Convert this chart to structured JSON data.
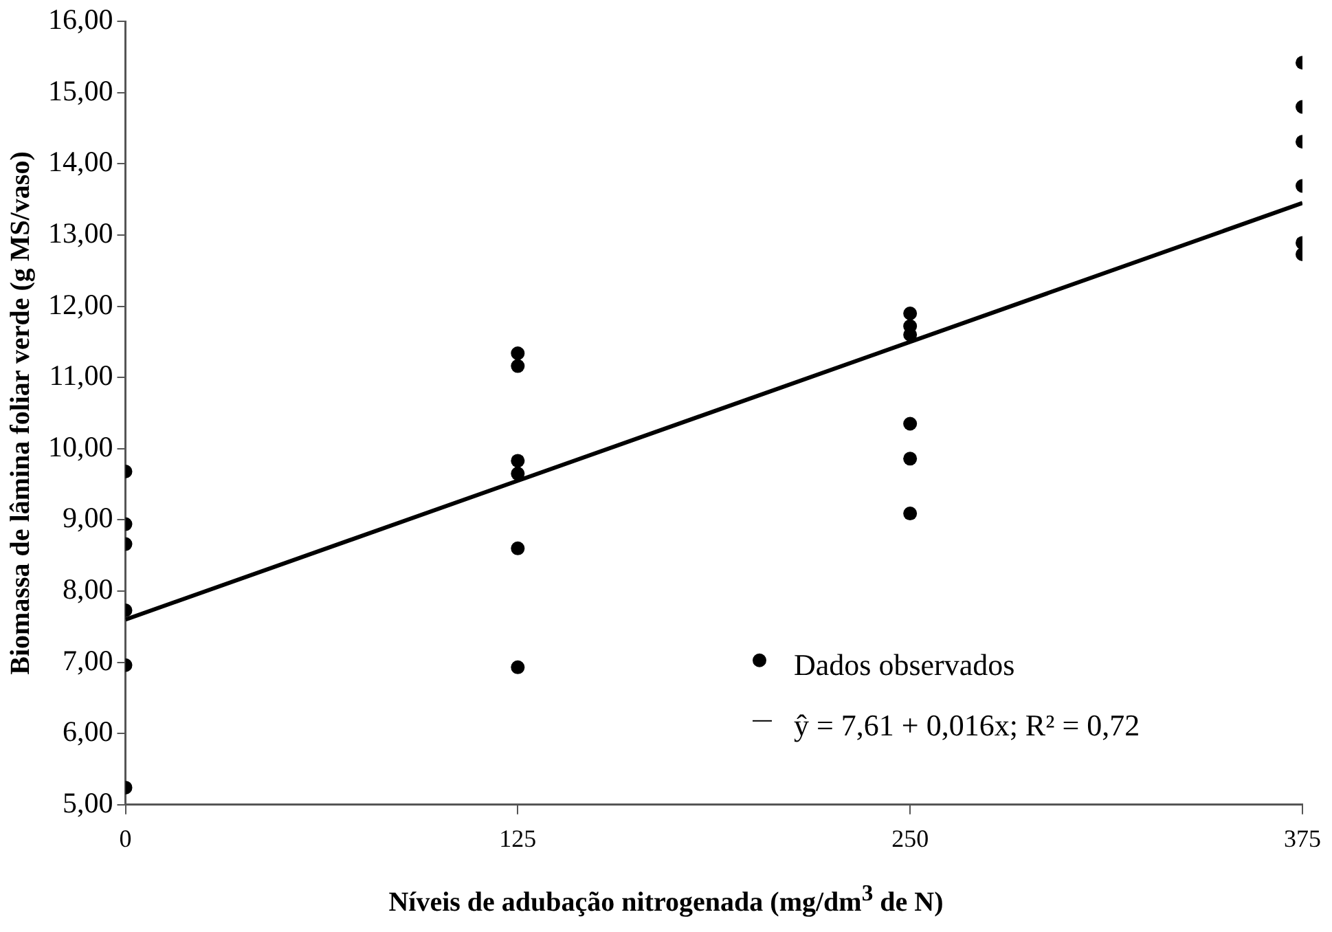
{
  "chart_data": {
    "type": "scatter",
    "xlabel": "Níveis de adubação nitrogenada (mg/dm$^{3}$ de N)",
    "ylabel": "Biomassa de lâmina foliar verde (g MS/vaso)",
    "xlim": [
      0,
      375
    ],
    "xticks": [
      0,
      125,
      250,
      375
    ],
    "ylim": [
      5,
      16
    ],
    "yticks": [
      {
        "value": 5,
        "label": "5,00"
      },
      {
        "value": 6,
        "label": "6,00"
      },
      {
        "value": 7,
        "label": "7,00"
      },
      {
        "value": 8,
        "label": "8,00"
      },
      {
        "value": 9,
        "label": "9,00"
      },
      {
        "value": 10,
        "label": "10,00"
      },
      {
        "value": 11,
        "label": "11,00"
      },
      {
        "value": 12,
        "label": "12,00"
      },
      {
        "value": 13,
        "label": "13,00"
      },
      {
        "value": 14,
        "label": "14,00"
      },
      {
        "value": 15,
        "label": "15,00"
      },
      {
        "value": 16,
        "label": "16,00"
      }
    ],
    "grid": false,
    "legend": "bottom right",
    "marker": "circle",
    "series": [
      {
        "name": "Dados observados",
        "type": "scatter",
        "color": "#000000",
        "x": [
          0,
          0,
          0,
          0,
          0,
          0,
          125,
          125,
          125,
          125,
          125,
          125,
          250,
          250,
          250,
          250,
          250,
          250,
          375,
          375,
          375,
          375,
          375,
          375
        ],
        "values": [
          9.68,
          8.94,
          8.66,
          7.73,
          6.96,
          5.24,
          11.34,
          11.16,
          9.83,
          9.65,
          8.6,
          6.93,
          11.9,
          11.72,
          11.6,
          10.35,
          9.86,
          9.09,
          15.42,
          14.8,
          14.31,
          13.69,
          12.89,
          12.73
        ]
      },
      {
        "name": "ŷ = 7,61 + 0,016x; R² = 0,72",
        "type": "line",
        "color": "#000000",
        "marker": "none",
        "line_style": "solid",
        "x": [
          0,
          375
        ],
        "values": [
          7.6,
          13.45
        ]
      }
    ]
  }
}
